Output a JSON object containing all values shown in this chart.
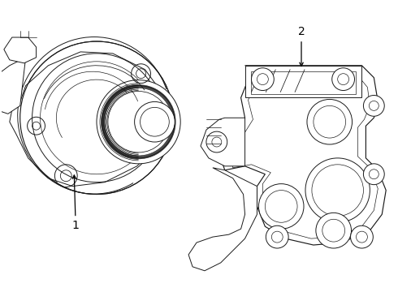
{
  "background_color": "#ffffff",
  "line_color": "#1a1a1a",
  "label_1": "1",
  "label_2": "2",
  "figsize": [
    4.9,
    3.6
  ],
  "dpi": 100,
  "lw": 0.7
}
